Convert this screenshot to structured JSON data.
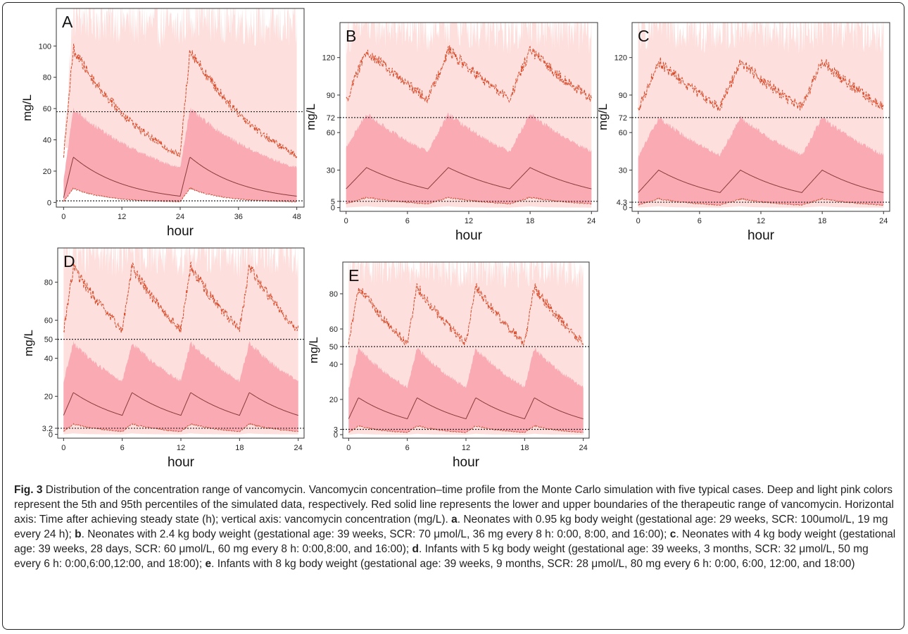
{
  "colors": {
    "light_band": "#fde0de",
    "deep_band": "#f9aab3",
    "median_line": "#8a3a3a",
    "upper_line": "#d84b2a",
    "lower_line": "#c8553d",
    "threshold_line": "#222222"
  },
  "chart_data": [
    {
      "type": "line",
      "panel_label": "A",
      "xlabel": "hour",
      "ylabel": "mg/L",
      "xlim": [
        -1.5,
        49.5
      ],
      "ylim": [
        -3,
        124
      ],
      "xticks": [
        0,
        12,
        24,
        36,
        48
      ],
      "yticks": [
        0,
        20,
        40,
        60,
        80,
        100
      ],
      "thresholds": [
        58,
        1
      ],
      "doses": [
        0,
        24
      ],
      "dose_interval": 24,
      "infusion": 2,
      "series": [
        {
          "role": "light_upper",
          "start": 32,
          "peak": 120,
          "trough": 112
        },
        {
          "role": "deep_upper",
          "start": 14,
          "peak": 60,
          "trough": 22
        },
        {
          "role": "upper",
          "start": 30,
          "peak": 98,
          "trough": 30
        },
        {
          "role": "median",
          "start": 3,
          "peak": 29,
          "trough": 4
        },
        {
          "role": "lower",
          "start": 0.5,
          "peak": 9,
          "trough": 0.4
        },
        {
          "role": "light_lower",
          "start": 0,
          "peak": 0,
          "trough": 0
        }
      ]
    },
    {
      "type": "line",
      "panel_label": "B",
      "xlabel": "hour",
      "ylabel": "mg/L",
      "xlim": [
        -0.6,
        24.6
      ],
      "ylim": [
        -3,
        148
      ],
      "xticks": [
        0,
        6,
        12,
        18,
        24
      ],
      "yticks": [
        0,
        5,
        30,
        60,
        72,
        90,
        120
      ],
      "ytick_labels": [
        "0",
        "5",
        "30",
        "60",
        "72",
        "90",
        "120"
      ],
      "thresholds": [
        72,
        5
      ],
      "doses": [
        0,
        8,
        16
      ],
      "dose_interval": 8,
      "infusion": 2,
      "series": [
        {
          "role": "light_upper",
          "start": 140,
          "peak": 148,
          "trough": 140
        },
        {
          "role": "deep_upper",
          "start": 48,
          "peak": 75,
          "trough": 45
        },
        {
          "role": "upper",
          "start": 85,
          "peak": 126,
          "trough": 87
        },
        {
          "role": "median",
          "start": 15,
          "peak": 32,
          "trough": 15
        },
        {
          "role": "lower",
          "start": 3,
          "peak": 8,
          "trough": 3
        },
        {
          "role": "light_lower",
          "start": 0,
          "peak": 1,
          "trough": 0
        }
      ]
    },
    {
      "type": "line",
      "panel_label": "C",
      "xlabel": "hour",
      "ylabel": "mg/L",
      "xlim": [
        -0.6,
        24.6
      ],
      "ylim": [
        -3,
        148
      ],
      "xticks": [
        0,
        6,
        12,
        18,
        24
      ],
      "yticks": [
        0,
        4.3,
        30,
        60,
        72,
        90,
        120
      ],
      "ytick_labels": [
        "0",
        "4.3",
        "30",
        "60",
        "72",
        "90",
        "120"
      ],
      "thresholds": [
        72,
        4.3
      ],
      "doses": [
        0,
        8,
        16
      ],
      "dose_interval": 8,
      "infusion": 2,
      "series": [
        {
          "role": "light_upper",
          "start": 140,
          "peak": 148,
          "trough": 140
        },
        {
          "role": "deep_upper",
          "start": 40,
          "peak": 72,
          "trough": 42
        },
        {
          "role": "upper",
          "start": 78,
          "peak": 117,
          "trough": 80
        },
        {
          "role": "median",
          "start": 12,
          "peak": 30,
          "trough": 12
        },
        {
          "role": "lower",
          "start": 2,
          "peak": 7,
          "trough": 2
        },
        {
          "role": "light_lower",
          "start": 0,
          "peak": 1,
          "trough": 0
        }
      ]
    },
    {
      "type": "line",
      "panel_label": "D",
      "xlabel": "hour",
      "ylabel": "mg/L",
      "xlim": [
        -0.6,
        24.6
      ],
      "ylim": [
        -2,
        98
      ],
      "xticks": [
        0,
        6,
        12,
        18,
        24
      ],
      "yticks": [
        0,
        3.2,
        20,
        40,
        50,
        60,
        80
      ],
      "ytick_labels": [
        "0",
        "3.2",
        "20",
        "40",
        "50",
        "60",
        "80"
      ],
      "thresholds": [
        50,
        3.2
      ],
      "doses": [
        0,
        6,
        12,
        18
      ],
      "dose_interval": 6,
      "infusion": 1,
      "series": [
        {
          "role": "light_upper",
          "start": 94,
          "peak": 98,
          "trough": 94
        },
        {
          "role": "deep_upper",
          "start": 28,
          "peak": 48,
          "trough": 28
        },
        {
          "role": "upper",
          "start": 54,
          "peak": 88,
          "trough": 55
        },
        {
          "role": "median",
          "start": 10,
          "peak": 22,
          "trough": 10
        },
        {
          "role": "lower",
          "start": 1.5,
          "peak": 5.5,
          "trough": 1.5
        },
        {
          "role": "light_lower",
          "start": 0,
          "peak": 0.5,
          "trough": 0
        }
      ]
    },
    {
      "type": "line",
      "panel_label": "E",
      "xlabel": "hour",
      "ylabel": "mg/L",
      "xlim": [
        -0.6,
        24.6
      ],
      "ylim": [
        -2,
        98
      ],
      "xticks": [
        0,
        6,
        12,
        18,
        24
      ],
      "yticks": [
        0,
        3,
        20,
        40,
        50,
        60,
        80
      ],
      "ytick_labels": [
        "0",
        "3",
        "20",
        "40",
        "50",
        "60",
        "80"
      ],
      "thresholds": [
        50,
        3
      ],
      "doses": [
        0,
        6,
        12,
        18
      ],
      "dose_interval": 6,
      "infusion": 1,
      "series": [
        {
          "role": "light_upper",
          "start": 94,
          "peak": 98,
          "trough": 94
        },
        {
          "role": "deep_upper",
          "start": 26,
          "peak": 49,
          "trough": 27
        },
        {
          "role": "upper",
          "start": 52,
          "peak": 84,
          "trough": 52
        },
        {
          "role": "median",
          "start": 9,
          "peak": 21,
          "trough": 9
        },
        {
          "role": "lower",
          "start": 1.2,
          "peak": 5,
          "trough": 1.2
        },
        {
          "role": "light_lower",
          "start": 0,
          "peak": 0.5,
          "trough": 0
        }
      ]
    }
  ],
  "caption": {
    "fig_label": "Fig. 3",
    "main": " Distribution of the concentration range of vancomycin. Vancomycin concentration–time profile from the Monte Carlo simulation with five typical cases. Deep and light pink colors represent the 5th and 95th percentiles of the simulated data, respectively. Red solid line represents the lower and upper boundaries of the therapeutic range of vancomycin. Horizontal axis: Time after achieving steady state (h); vertical axis: vancomycin concentration (mg/L). ",
    "a_label": "a",
    "a_text": ". Neonates with 0.95 kg body weight (gestational age: 29 weeks, SCR: 100umol/L, 19 mg every 24 h); ",
    "b_label": "b",
    "b_text": ". Neonates with 2.4 kg body weight (gestational age: 39 weeks, SCR: 70 μmol/L, 36 mg every 8 h: 0:00, 8:00, and 16:00); ",
    "c_label": "c",
    "c_text": ". Neonates with 4 kg body weight (gestational age: 39 weeks, 28 days, SCR: 60 μmol/L, 60 mg every 8 h: 0:00,8:00, and 16:00); ",
    "d_label": "d",
    "d_text": ". Infants with 5 kg body weight (gestational age: 39 weeks, 3 months, SCR: 32 μmol/L, 50 mg every 6 h: 0:00,6:00,12:00, and 18:00); ",
    "e_label": "e",
    "e_text": ". Infants with 8 kg body weight (gestational age: 39 weeks, 9 months, SCR: 28 μmol/L, 80 mg every 6 h: 0:00, 6:00, 12:00, and 18:00)"
  }
}
